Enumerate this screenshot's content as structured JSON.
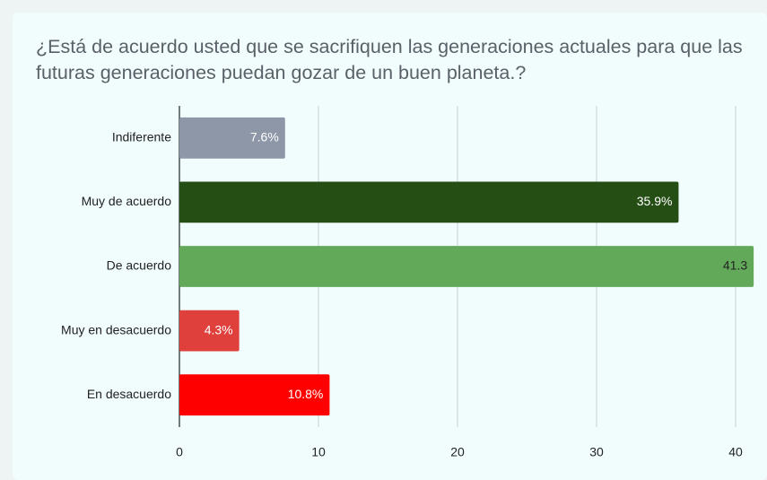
{
  "chart_data": {
    "type": "barh",
    "title": "¿Está de acuerdo usted que se sacrifiquen las generaciones actuales para que las futuras generaciones puedan gozar de un buen planeta.?",
    "categories": [
      "Indiferente",
      "Muy de acuerdo",
      "De acuerdo",
      "Muy en desacuerdo",
      "En desacuerdo"
    ],
    "values": [
      7.6,
      35.9,
      41.3,
      4.3,
      10.8
    ],
    "value_labels": [
      "7.6%",
      "35.9%",
      "41.3",
      "4.3%",
      "10.8%"
    ],
    "colors": [
      "#8e97a8",
      "#254e14",
      "#62aa5a",
      "#e0403c",
      "#ff0000"
    ],
    "value_label_colors": [
      "#ffffff",
      "#ffffff",
      "#222222",
      "#ffffff",
      "#ffffff"
    ],
    "xlim": [
      0,
      40
    ],
    "xticks": [
      0,
      10,
      20,
      30,
      40
    ],
    "grid": true
  }
}
